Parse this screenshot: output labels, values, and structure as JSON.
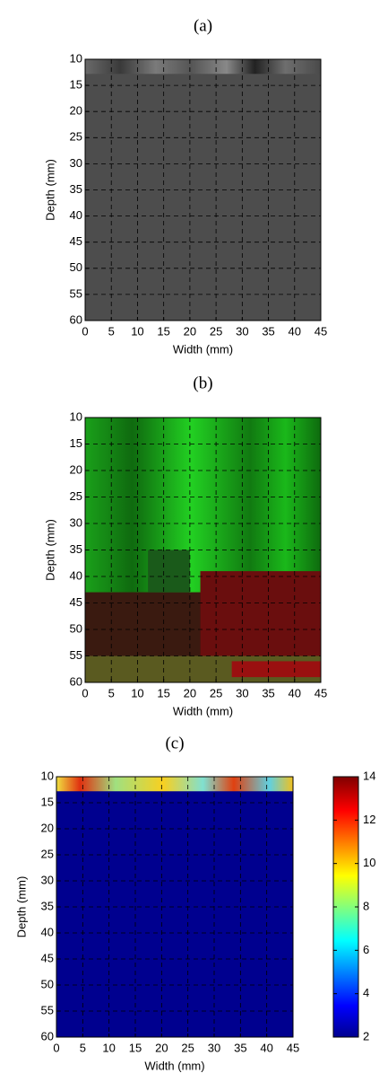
{
  "chart_data": [
    {
      "type": "heatmap",
      "title": "(a)",
      "xlabel": "Width (mm)",
      "ylabel": "Depth (mm)",
      "xlim": [
        0,
        45
      ],
      "ylim": [
        10,
        60
      ],
      "y_inverted": true,
      "xticks": [
        0,
        5,
        10,
        15,
        20,
        25,
        30,
        35,
        40,
        45
      ],
      "yticks": [
        10,
        15,
        20,
        25,
        30,
        35,
        40,
        45,
        50,
        55,
        60
      ],
      "grid": true
    },
    {
      "type": "heatmap",
      "title": "(b)",
      "xlabel": "Width (mm)",
      "ylabel": "Depth (mm)",
      "xlim": [
        0,
        45
      ],
      "ylim": [
        10,
        60
      ],
      "y_inverted": true,
      "xticks": [
        0,
        5,
        10,
        15,
        20,
        25,
        30,
        35,
        40,
        45
      ],
      "yticks": [
        10,
        15,
        20,
        25,
        30,
        35,
        40,
        45,
        50,
        55,
        60
      ],
      "grid": true
    },
    {
      "type": "heatmap",
      "title": "(c)",
      "xlabel": "Width (mm)",
      "ylabel": "Depth (mm)",
      "xlim": [
        0,
        45
      ],
      "ylim": [
        10,
        60
      ],
      "y_inverted": true,
      "xticks": [
        0,
        5,
        10,
        15,
        20,
        25,
        30,
        35,
        40,
        45
      ],
      "yticks": [
        10,
        15,
        20,
        25,
        30,
        35,
        40,
        45,
        50,
        55,
        60
      ],
      "grid": true,
      "colorbar": {
        "clim": [
          2,
          14
        ],
        "ticks": [
          2,
          4,
          6,
          8,
          10,
          12,
          14
        ]
      }
    }
  ]
}
